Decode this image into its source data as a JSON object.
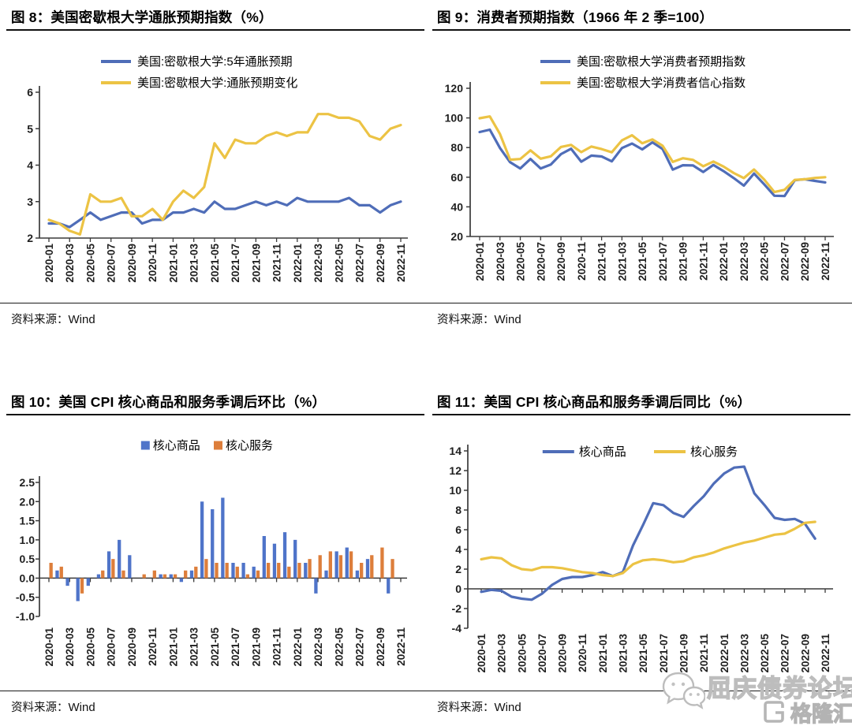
{
  "strings": {
    "source_label": "资料来源：",
    "source_value": "Wind",
    "watermark_forum": "屈庆债券论坛",
    "watermark_logo": "格隆汇"
  },
  "colors": {
    "blue": "#4F6DB8",
    "gold": "#ECC344",
    "bar_blue": "#4F74C9",
    "bar_orange": "#DD7E3B",
    "axis": "#3a3a3a",
    "tick_text": "#1f1f1f",
    "watermark": "#bdbdbd"
  },
  "chart_data": [
    {
      "id": "fig8",
      "type": "line",
      "title": "图 8：美国密歇根大学通胀预期指数（%）",
      "source": "Wind",
      "ylim": [
        2,
        6
      ],
      "yticks": [
        2,
        3,
        4,
        5,
        6
      ],
      "ytick_decimals": 0,
      "x_tick_step": 2,
      "baseline_zero": false,
      "legend_position": "top-rows",
      "categories": [
        "2020-01",
        "2020-02",
        "2020-03",
        "2020-04",
        "2020-05",
        "2020-06",
        "2020-07",
        "2020-08",
        "2020-09",
        "2020-10",
        "2020-11",
        "2020-12",
        "2021-01",
        "2021-02",
        "2021-03",
        "2021-04",
        "2021-05",
        "2021-06",
        "2021-07",
        "2021-08",
        "2021-09",
        "2021-10",
        "2021-11",
        "2021-12",
        "2022-01",
        "2022-02",
        "2022-03",
        "2022-04",
        "2022-05",
        "2022-06",
        "2022-07",
        "2022-08",
        "2022-09",
        "2022-10",
        "2022-11"
      ],
      "series": [
        {
          "name": "美国:密歇根大学:5年通胀预期",
          "color_key": "blue",
          "values": [
            2.4,
            2.4,
            2.3,
            2.5,
            2.7,
            2.5,
            2.6,
            2.7,
            2.7,
            2.4,
            2.5,
            2.5,
            2.7,
            2.7,
            2.8,
            2.7,
            3.0,
            2.8,
            2.8,
            2.9,
            3.0,
            2.9,
            3.0,
            2.9,
            3.1,
            3.0,
            3.0,
            3.0,
            3.0,
            3.1,
            2.9,
            2.9,
            2.7,
            2.9,
            3.0
          ]
        },
        {
          "name": "美国:密歇根大学:通胀预期变化",
          "color_key": "gold",
          "values": [
            2.5,
            2.4,
            2.2,
            2.1,
            3.2,
            3.0,
            3.0,
            3.1,
            2.6,
            2.6,
            2.8,
            2.5,
            3.0,
            3.3,
            3.1,
            3.4,
            4.6,
            4.2,
            4.7,
            4.6,
            4.6,
            4.8,
            4.9,
            4.8,
            4.9,
            4.9,
            5.4,
            5.4,
            5.3,
            5.3,
            5.2,
            4.8,
            4.7,
            5.0,
            5.1
          ]
        }
      ]
    },
    {
      "id": "fig9",
      "type": "line",
      "title": "图 9：消费者预期指数（1966 年 2 季=100）",
      "source": "Wind",
      "ylim": [
        20,
        120
      ],
      "yticks": [
        20,
        40,
        60,
        80,
        100,
        120
      ],
      "ytick_decimals": 0,
      "x_tick_step": 2,
      "baseline_zero": false,
      "legend_position": "top-rows",
      "categories": [
        "2020-01",
        "2020-02",
        "2020-03",
        "2020-04",
        "2020-05",
        "2020-06",
        "2020-07",
        "2020-08",
        "2020-09",
        "2020-10",
        "2020-11",
        "2020-12",
        "2021-01",
        "2021-02",
        "2021-03",
        "2021-04",
        "2021-05",
        "2021-06",
        "2021-07",
        "2021-08",
        "2021-09",
        "2021-10",
        "2021-11",
        "2021-12",
        "2022-01",
        "2022-02",
        "2022-03",
        "2022-04",
        "2022-05",
        "2022-06",
        "2022-07",
        "2022-08",
        "2022-09",
        "2022-10",
        "2022-11"
      ],
      "series": [
        {
          "name": "美国:密歇根大学消费者预期指数",
          "color_key": "blue",
          "values": [
            90.5,
            92.1,
            79.7,
            70.1,
            65.9,
            72.3,
            65.9,
            68.5,
            75.6,
            79.2,
            70.5,
            74.6,
            74.0,
            70.7,
            79.7,
            82.7,
            78.8,
            83.5,
            79.0,
            65.1,
            68.1,
            67.9,
            63.5,
            68.3,
            64.1,
            59.4,
            54.3,
            62.5,
            55.2,
            47.5,
            47.3,
            58.0,
            58.6,
            57.5,
            56.5
          ]
        },
        {
          "name": "美国:密歇根大学消费者信心指数",
          "color_key": "gold",
          "values": [
            99.8,
            101.0,
            89.1,
            71.8,
            72.3,
            78.1,
            72.5,
            74.1,
            80.4,
            81.8,
            76.9,
            80.7,
            79.0,
            76.8,
            84.9,
            88.3,
            82.9,
            85.5,
            81.2,
            70.3,
            72.8,
            71.7,
            67.4,
            70.6,
            67.2,
            62.8,
            59.4,
            65.2,
            58.4,
            50.0,
            51.5,
            58.2,
            58.6,
            59.5,
            60.0
          ]
        }
      ]
    },
    {
      "id": "fig10",
      "type": "bar",
      "title": "图 10：美国 CPI 核心商品和服务季调后环比（%）",
      "source": "Wind",
      "ylim": [
        -1.0,
        2.5
      ],
      "yticks": [
        -1.0,
        -0.5,
        0.0,
        0.5,
        1.0,
        1.5,
        2.0,
        2.5
      ],
      "ytick_decimals": 1,
      "x_tick_step": 2,
      "baseline_zero": true,
      "legend_position": "top-row",
      "categories": [
        "2020-01",
        "2020-02",
        "2020-03",
        "2020-04",
        "2020-05",
        "2020-06",
        "2020-07",
        "2020-08",
        "2020-09",
        "2020-10",
        "2020-11",
        "2020-12",
        "2021-01",
        "2021-02",
        "2021-03",
        "2021-04",
        "2021-05",
        "2021-06",
        "2021-07",
        "2021-08",
        "2021-09",
        "2021-10",
        "2021-11",
        "2021-12",
        "2022-01",
        "2022-02",
        "2022-03",
        "2022-04",
        "2022-05",
        "2022-06",
        "2022-07",
        "2022-08",
        "2022-09",
        "2022-10",
        "2022-11"
      ],
      "series": [
        {
          "name": "核心商品",
          "color_key": "bar_blue",
          "values": [
            0.0,
            0.2,
            -0.2,
            -0.6,
            -0.2,
            0.1,
            0.7,
            1.0,
            0.6,
            0.0,
            0.0,
            0.1,
            0.1,
            -0.1,
            0.2,
            2.0,
            1.8,
            2.1,
            0.4,
            0.4,
            0.3,
            1.1,
            0.9,
            1.2,
            1.0,
            0.4,
            -0.4,
            0.2,
            0.7,
            0.8,
            0.2,
            0.5,
            0.0,
            -0.4,
            null
          ]
        },
        {
          "name": "核心服务",
          "color_key": "bar_orange",
          "values": [
            0.4,
            0.3,
            0.0,
            -0.4,
            0.0,
            0.2,
            0.5,
            0.2,
            0.0,
            0.1,
            0.2,
            0.1,
            0.1,
            0.2,
            0.3,
            0.5,
            0.4,
            0.4,
            0.3,
            0.1,
            0.2,
            0.4,
            0.4,
            0.3,
            0.4,
            0.5,
            0.6,
            0.7,
            0.6,
            0.7,
            0.4,
            0.6,
            0.8,
            0.5,
            null
          ]
        }
      ]
    },
    {
      "id": "fig11",
      "type": "line",
      "title": "图 11：美国 CPI 核心商品和服务季调后同比（%）",
      "source": "Wind",
      "ylim": [
        -4,
        14
      ],
      "yticks": [
        -4,
        -2,
        0,
        2,
        4,
        6,
        8,
        10,
        12,
        14
      ],
      "ytick_decimals": 0,
      "x_tick_step": 2,
      "baseline_zero": true,
      "legend_position": "top-row",
      "categories": [
        "2020-01",
        "2020-02",
        "2020-03",
        "2020-04",
        "2020-05",
        "2020-06",
        "2020-07",
        "2020-08",
        "2020-09",
        "2020-10",
        "2020-11",
        "2020-12",
        "2021-01",
        "2021-02",
        "2021-03",
        "2021-04",
        "2021-05",
        "2021-06",
        "2021-07",
        "2021-08",
        "2021-09",
        "2021-10",
        "2021-11",
        "2021-12",
        "2022-01",
        "2022-02",
        "2022-03",
        "2022-04",
        "2022-05",
        "2022-06",
        "2022-07",
        "2022-08",
        "2022-09",
        "2022-10",
        "2022-11"
      ],
      "series": [
        {
          "name": "核心商品",
          "color_key": "blue",
          "values": [
            -0.3,
            -0.1,
            -0.2,
            -0.8,
            -1.0,
            -1.1,
            -0.5,
            0.4,
            1.0,
            1.2,
            1.2,
            1.4,
            1.7,
            1.3,
            1.7,
            4.4,
            6.5,
            8.7,
            8.5,
            7.7,
            7.3,
            8.4,
            9.4,
            10.7,
            11.7,
            12.3,
            12.4,
            9.7,
            8.5,
            7.2,
            7.0,
            7.1,
            6.6,
            5.1,
            null
          ]
        },
        {
          "name": "核心服务",
          "color_key": "gold",
          "values": [
            3.0,
            3.2,
            3.1,
            2.4,
            2.0,
            1.9,
            2.2,
            2.2,
            2.1,
            1.9,
            1.7,
            1.6,
            1.4,
            1.3,
            1.6,
            2.5,
            2.9,
            3.0,
            2.9,
            2.7,
            2.8,
            3.2,
            3.4,
            3.7,
            4.1,
            4.4,
            4.7,
            4.9,
            5.2,
            5.5,
            5.6,
            6.1,
            6.7,
            6.8,
            null
          ]
        }
      ]
    }
  ]
}
